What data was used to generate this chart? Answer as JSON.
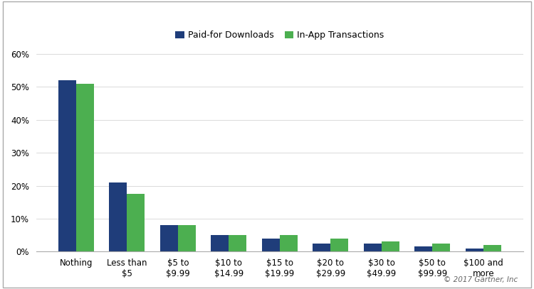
{
  "categories": [
    "Nothing",
    "Less than\n$5",
    "$5 to\n$9.99",
    "$10 to\n$14.99",
    "$15 to\n$19.99",
    "$20 to\n$29.99",
    "$30 to\n$49.99",
    "$50 to\n$99.99",
    "$100 and\nmore"
  ],
  "paid_downloads": [
    52,
    21,
    8,
    5,
    4,
    2.5,
    2.5,
    1.5,
    1
  ],
  "inapp_transactions": [
    51,
    17.5,
    8,
    5,
    5,
    4,
    3,
    2.5,
    2
  ],
  "paid_color": "#1F3D7A",
  "inapp_color": "#4CAF50",
  "legend_labels": [
    "Paid-for Downloads",
    "In-App Transactions"
  ],
  "ylim": [
    0,
    62
  ],
  "yticks": [
    0,
    10,
    20,
    30,
    40,
    50,
    60
  ],
  "background_color": "#ffffff",
  "border_color": "#aaaaaa",
  "watermark": "© 2017 Gartner, Inc",
  "bar_width": 0.35
}
